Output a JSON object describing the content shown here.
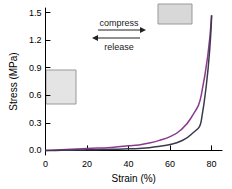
{
  "chart_data": {
    "type": "line",
    "x_label": "Strain (%)",
    "y_label": "Stress (MPa)",
    "x": [
      0,
      5,
      10,
      15,
      20,
      25,
      30,
      35,
      40,
      45,
      50,
      55,
      60,
      65,
      70,
      75,
      80
    ],
    "series": [
      {
        "color": "#8b3a8f",
        "values": [
          0,
          0.005,
          0.01,
          0.015,
          0.02,
          0.025,
          0.03,
          0.04,
          0.05,
          0.06,
          0.08,
          0.11,
          0.15,
          0.22,
          0.35,
          0.6,
          1.47
        ]
      },
      {
        "color": "#3a3a4a",
        "values": [
          0,
          0,
          0.002,
          0.004,
          0.006,
          0.008,
          0.01,
          0.013,
          0.017,
          0.022,
          0.03,
          0.045,
          0.065,
          0.1,
          0.17,
          0.32,
          1.47
        ]
      }
    ],
    "xlim": [
      0,
      85
    ],
    "xticks": [
      0,
      20,
      40,
      60,
      80
    ],
    "ylim": [
      -0.05,
      1.55
    ],
    "yticks": [
      {
        "value": 0,
        "label": "0.0"
      },
      {
        "value": 0.3,
        "label": "0.3"
      },
      {
        "value": 0.6,
        "label": "0.6"
      },
      {
        "value": 0.9,
        "label": "0.9"
      },
      {
        "value": 1.2,
        "label": "1.2"
      },
      {
        "value": 1.5,
        "label": "1.5"
      }
    ],
    "annotations": [
      "compress",
      "release"
    ],
    "grid": false
  }
}
